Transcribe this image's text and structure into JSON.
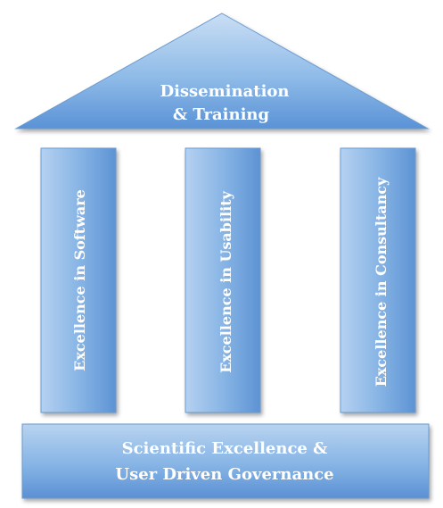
{
  "roof": {
    "line1": "Dissemination",
    "line2": "& Training"
  },
  "pillars": [
    {
      "label": "Excellence in Software"
    },
    {
      "label": "Excellence in Usability"
    },
    {
      "label": "Excellence in Consultancy"
    }
  ],
  "foundation": {
    "line1": "Scientific Excellence &",
    "line2": "User Driven Governance"
  },
  "colors": {
    "light_blue": "#c4dcf4",
    "mid_blue": "#86b6e6",
    "dark_blue": "#4f89cf",
    "outline": "#5f91c9",
    "text": "#ffffff"
  }
}
